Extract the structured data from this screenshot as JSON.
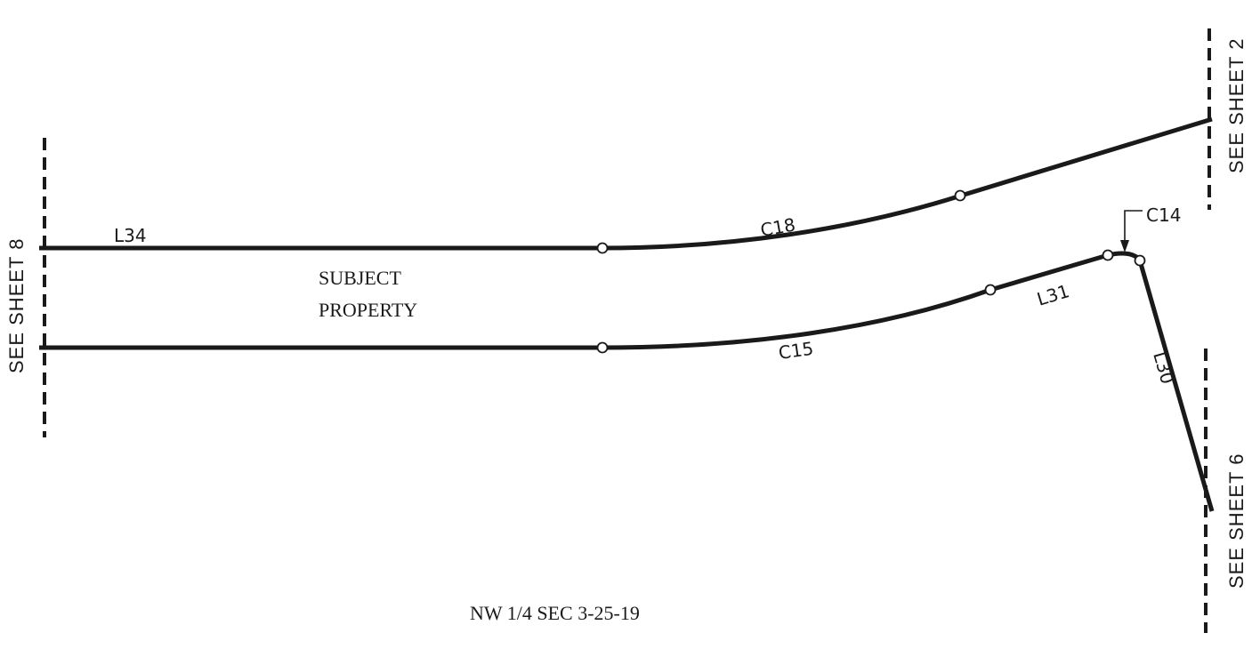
{
  "labels": {
    "l34": "L34",
    "c18": "C18",
    "c14": "C14",
    "l31": "L31",
    "c15": "C15",
    "l30": "L30",
    "subject_line1": "SUBJECT",
    "subject_line2": "PROPERTY",
    "section": "NW 1/4 SEC 3-25-19"
  },
  "match_lines": {
    "sheet8": "SEE SHEET 8",
    "sheet2": "SEE SHEET 2",
    "sheet6": "SEE SHEET 6"
  },
  "colors": {
    "ink": "#1a1a1a",
    "background": "#ffffff"
  }
}
